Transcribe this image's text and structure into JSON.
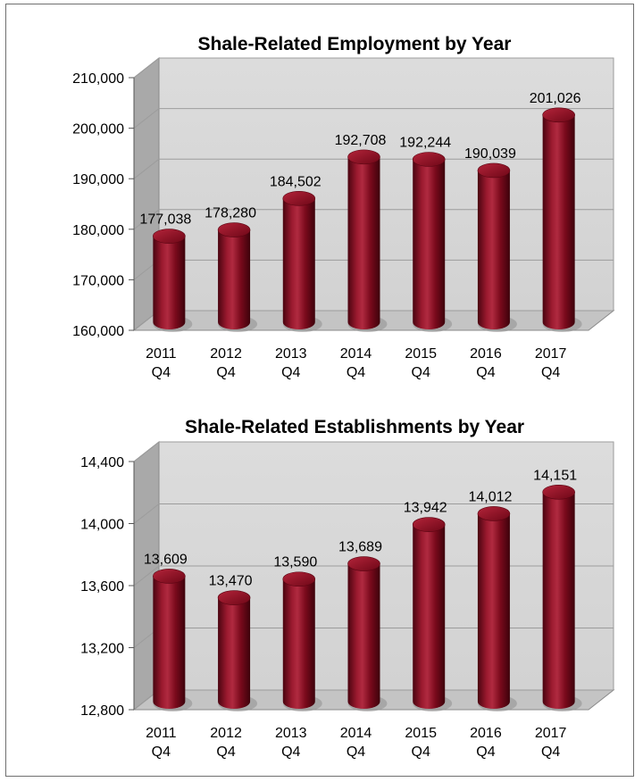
{
  "chart_data": [
    {
      "type": "bar",
      "title": "Shale-Related Employment by Year",
      "categories": [
        [
          "2011",
          "Q4"
        ],
        [
          "2012",
          "Q4"
        ],
        [
          "2013",
          "Q4"
        ],
        [
          "2014",
          "Q4"
        ],
        [
          "2015",
          "Q4"
        ],
        [
          "2016",
          "Q4"
        ],
        [
          "2017",
          "Q4"
        ]
      ],
      "values": [
        177038,
        178280,
        184502,
        192708,
        192244,
        190039,
        201026
      ],
      "data_labels": [
        "177,038",
        "178,280",
        "184,502",
        "192,708",
        "192,244",
        "190,039",
        "201,026"
      ],
      "ylim": [
        160000,
        210000
      ],
      "yticks": [
        160000,
        170000,
        180000,
        190000,
        200000,
        210000
      ],
      "ytick_labels": [
        "160,000",
        "170,000",
        "180,000",
        "190,000",
        "200,000",
        "210,000"
      ],
      "grid": true,
      "legend": "none",
      "style": "3d-cylinder",
      "bar_color": "#8b0f22",
      "wall_color": "#d9d9d9"
    },
    {
      "type": "bar",
      "title": "Shale-Related Establishments by Year",
      "categories": [
        [
          "2011",
          "Q4"
        ],
        [
          "2012",
          "Q4"
        ],
        [
          "2013",
          "Q4"
        ],
        [
          "2014",
          "Q4"
        ],
        [
          "2015",
          "Q4"
        ],
        [
          "2016",
          "Q4"
        ],
        [
          "2017",
          "Q4"
        ]
      ],
      "values": [
        13609,
        13470,
        13590,
        13689,
        13942,
        14012,
        14151
      ],
      "data_labels": [
        "13,609",
        "13,470",
        "13,590",
        "13,689",
        "13,942",
        "14,012",
        "14,151"
      ],
      "ylim": [
        12800,
        14400
      ],
      "yticks": [
        12800,
        13200,
        13600,
        14000,
        14400
      ],
      "ytick_labels": [
        "12,800",
        "13,200",
        "13,600",
        "14,000",
        "14,400"
      ],
      "grid": true,
      "legend": "none",
      "style": "3d-cylinder",
      "bar_color": "#8b0f22",
      "wall_color": "#d9d9d9"
    }
  ]
}
